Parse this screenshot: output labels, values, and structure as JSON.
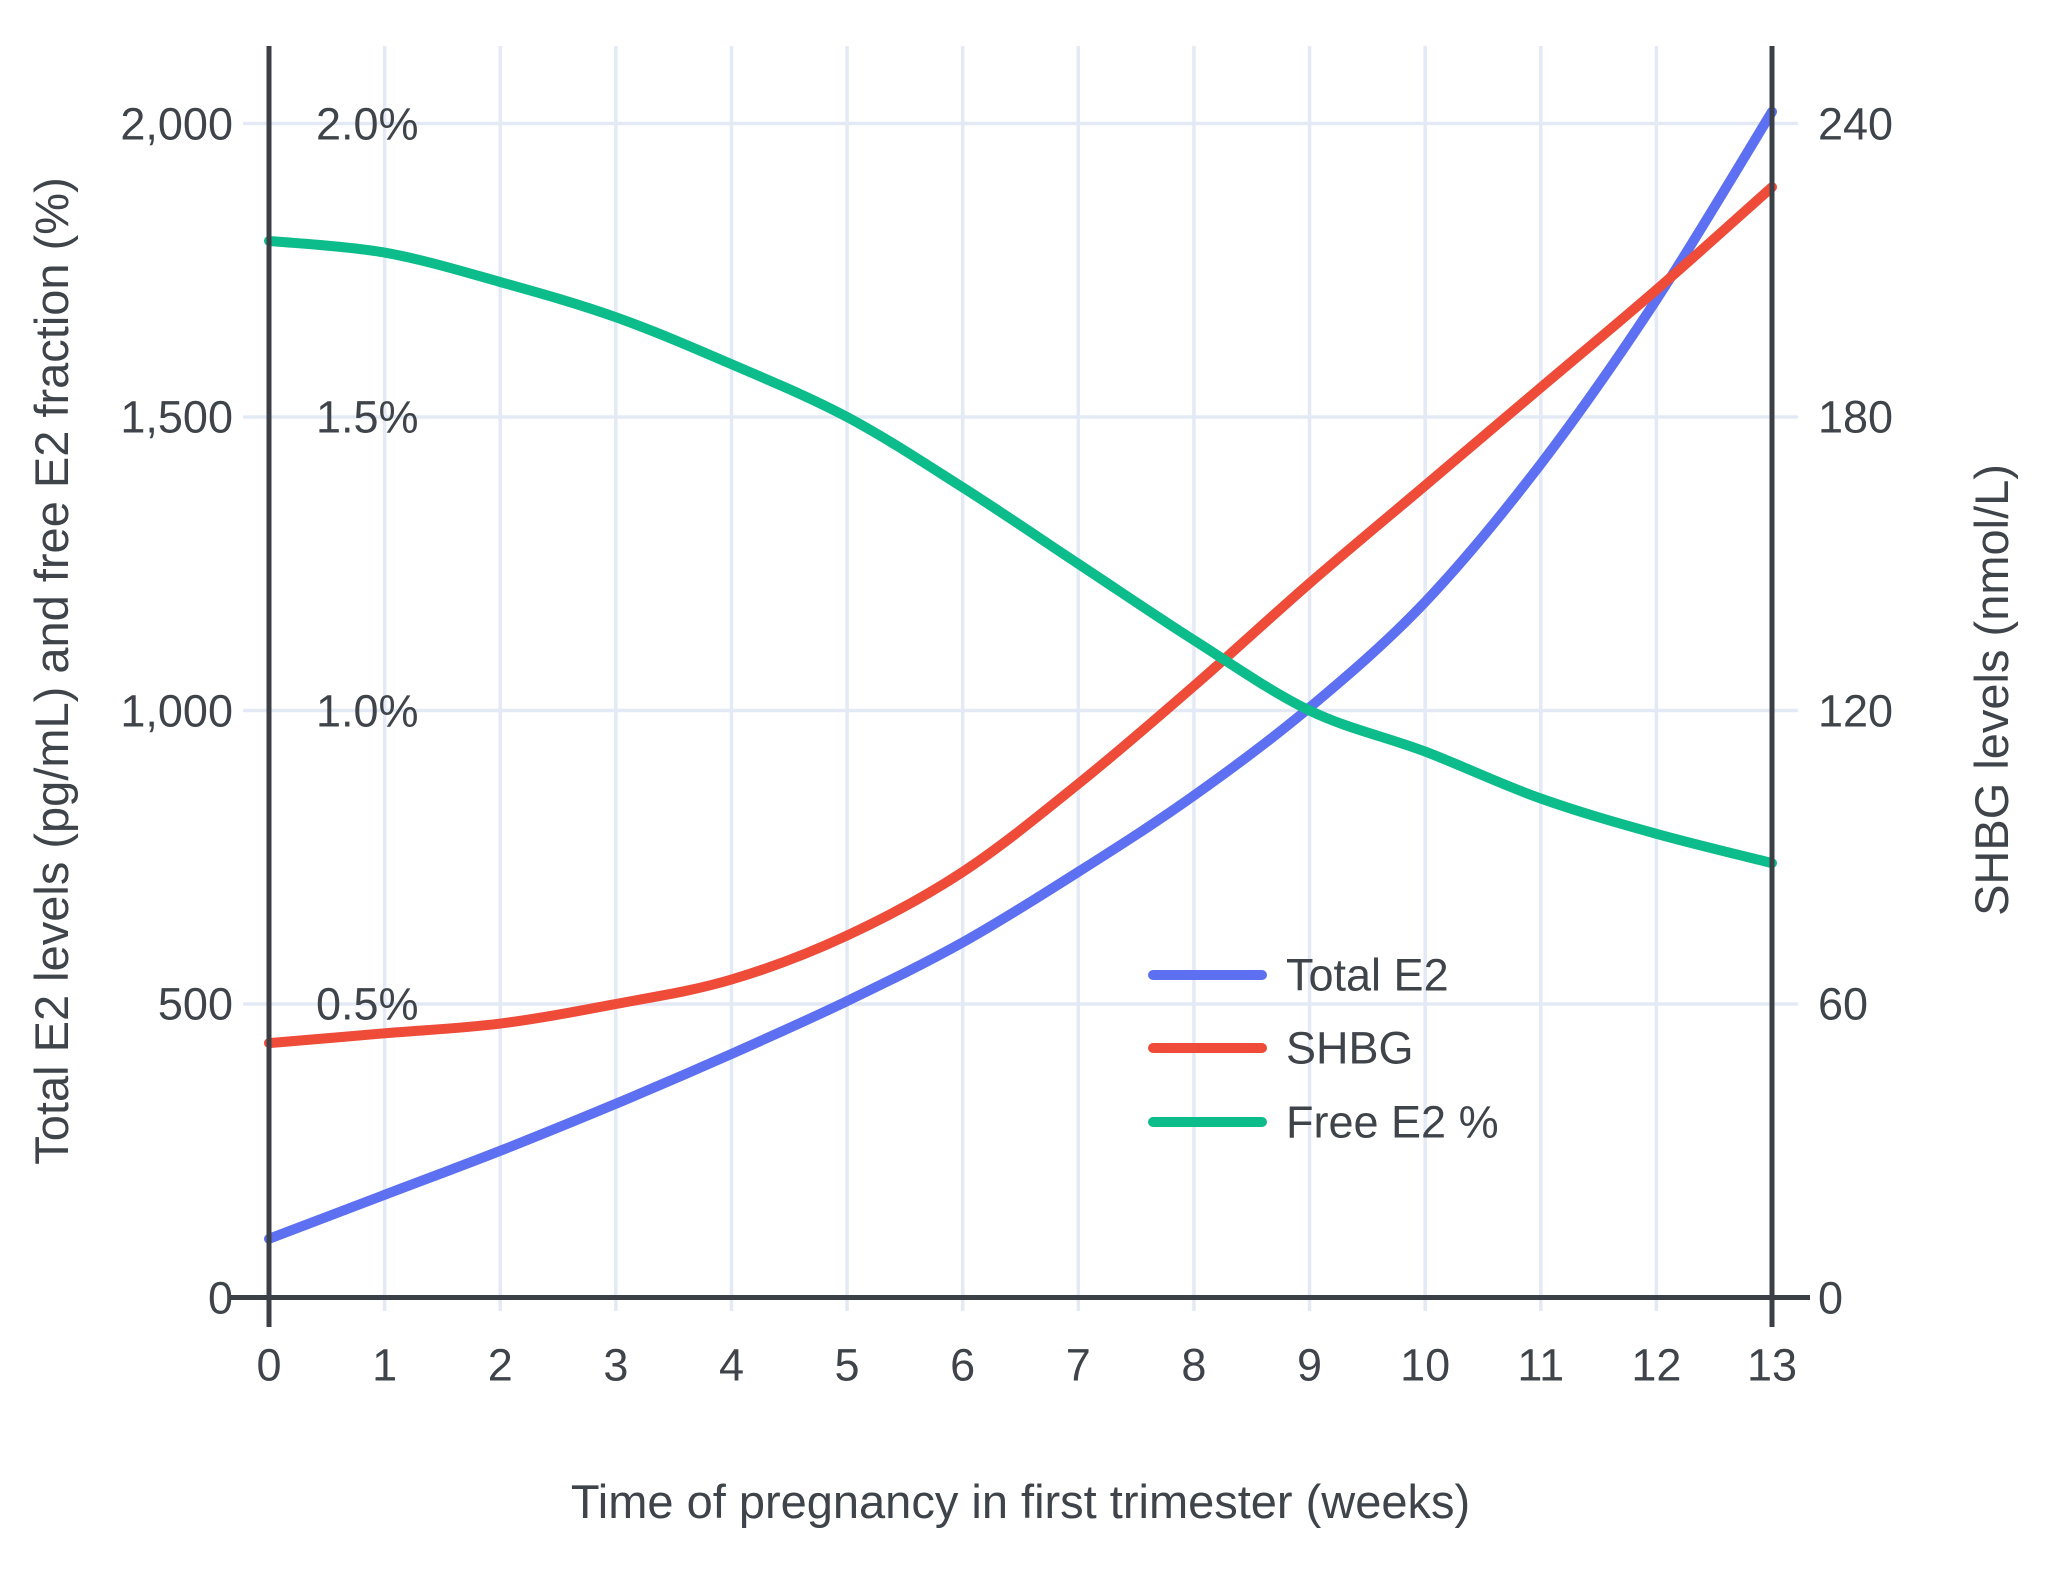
{
  "chart_data": {
    "type": "line",
    "title": "",
    "xlabel": "Time of pregnancy in first trimester (weeks)",
    "ylabel_left": "Total E2 levels (pg/mL) and free E2 fraction (%)",
    "ylabel_right": "SHBG levels (nmol/L)",
    "x": [
      0,
      1,
      2,
      3,
      4,
      5,
      6,
      7,
      8,
      9,
      10,
      11,
      12,
      13
    ],
    "x_ticks": [
      "0",
      "1",
      "2",
      "3",
      "4",
      "5",
      "6",
      "7",
      "8",
      "9",
      "10",
      "11",
      "12",
      "13"
    ],
    "y_ticks_left": [
      "0",
      "500",
      "1,000",
      "1,500",
      "2,000"
    ],
    "y_ticks_left_values": [
      0,
      500,
      1000,
      1500,
      2000
    ],
    "y_ticks_percent": [
      "0.5%",
      "1.0%",
      "1.5%",
      "2.0%"
    ],
    "y_ticks_percent_values": [
      500,
      1000,
      1500,
      2000
    ],
    "y_ticks_right": [
      "0",
      "60",
      "120",
      "180",
      "240"
    ],
    "y_ticks_right_values": [
      0,
      60,
      120,
      180,
      240
    ],
    "xlim": [
      0,
      13
    ],
    "ylim_left": [
      0,
      2135
    ],
    "ylim_right": [
      0,
      256
    ],
    "grid": true,
    "legend_position": "inside-right-middle",
    "series": [
      {
        "name": "Total E2",
        "unit": "pg/mL",
        "axis": "left",
        "color": "#5c70f1",
        "values": [
          100,
          175,
          250,
          330,
          415,
          505,
          605,
          725,
          855,
          1005,
          1185,
          1420,
          1700,
          2020
        ]
      },
      {
        "name": "SHBG",
        "unit": "nmol/L",
        "axis": "right",
        "color": "#ee4b39",
        "values": [
          52,
          54,
          56,
          60,
          65,
          74,
          87,
          105,
          125,
          146,
          166,
          186,
          206,
          227
        ]
      },
      {
        "name": "Free E2 %",
        "unit": "%",
        "axis": "left-percent",
        "color": "#0cbd8b",
        "values": [
          1.8,
          1.78,
          1.73,
          1.67,
          1.59,
          1.5,
          1.38,
          1.25,
          1.12,
          1.0,
          0.93,
          0.85,
          0.79,
          0.74
        ]
      }
    ]
  },
  "colors": {
    "background": "#ffffff",
    "grid": "#e3eaf5",
    "axis_line": "#3b4046",
    "text": "#3f444a"
  }
}
